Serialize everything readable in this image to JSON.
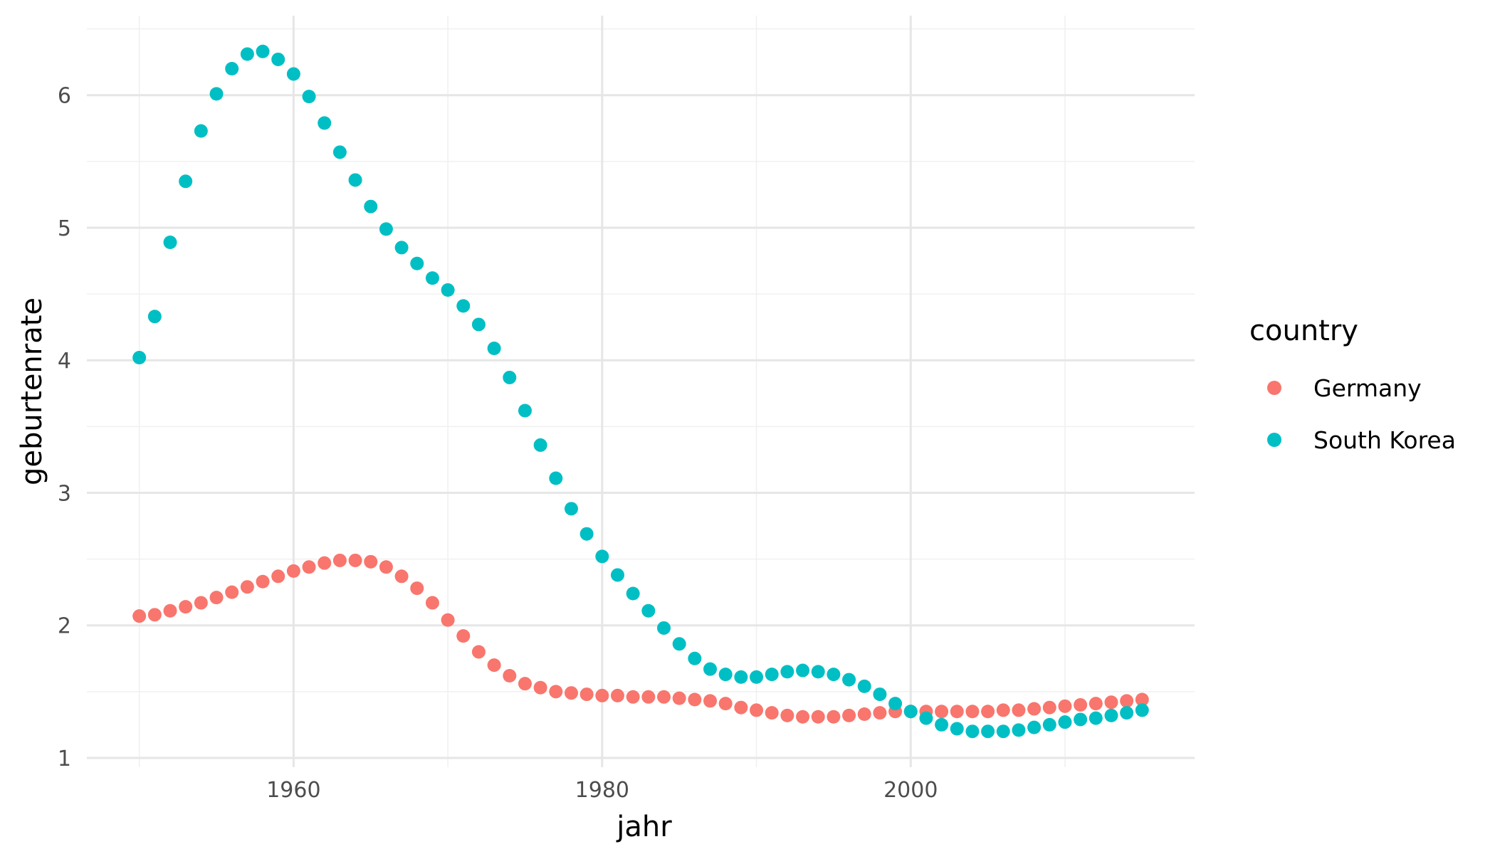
{
  "chart_data": {
    "type": "scatter",
    "xlabel": "jahr",
    "ylabel": "geburtenrate",
    "xlim": [
      1946.6,
      2018.4
    ],
    "ylim": [
      0.93,
      6.6
    ],
    "x_ticks": [
      1960,
      1980,
      2000
    ],
    "x_tick_labels": [
      "1960",
      "1980",
      "2000"
    ],
    "x_minor_ticks": [
      1950,
      1970,
      1990,
      2010
    ],
    "y_ticks": [
      1,
      2,
      3,
      4,
      5,
      6
    ],
    "y_tick_labels": [
      "1",
      "2",
      "3",
      "4",
      "5",
      "6"
    ],
    "y_minor_ticks": [
      1.5,
      2.5,
      3.5,
      4.5,
      5.5,
      6.5
    ],
    "grid": true,
    "legend": {
      "title": "country",
      "position": "right"
    },
    "series": [
      {
        "name": "Germany",
        "color": "#F8766D",
        "x": [
          1950,
          1951,
          1952,
          1953,
          1954,
          1955,
          1956,
          1957,
          1958,
          1959,
          1960,
          1961,
          1962,
          1963,
          1964,
          1965,
          1966,
          1967,
          1968,
          1969,
          1970,
          1971,
          1972,
          1973,
          1974,
          1975,
          1976,
          1977,
          1978,
          1979,
          1980,
          1981,
          1982,
          1983,
          1984,
          1985,
          1986,
          1987,
          1988,
          1989,
          1990,
          1991,
          1992,
          1993,
          1994,
          1995,
          1996,
          1997,
          1998,
          1999,
          2000,
          2001,
          2002,
          2003,
          2004,
          2005,
          2006,
          2007,
          2008,
          2009,
          2010,
          2011,
          2012,
          2013,
          2014,
          2015
        ],
        "y": [
          2.07,
          2.08,
          2.11,
          2.14,
          2.17,
          2.21,
          2.25,
          2.29,
          2.33,
          2.37,
          2.41,
          2.44,
          2.47,
          2.49,
          2.49,
          2.48,
          2.44,
          2.37,
          2.28,
          2.17,
          2.04,
          1.92,
          1.8,
          1.7,
          1.62,
          1.56,
          1.53,
          1.5,
          1.49,
          1.48,
          1.47,
          1.47,
          1.46,
          1.46,
          1.46,
          1.45,
          1.44,
          1.43,
          1.41,
          1.38,
          1.36,
          1.34,
          1.32,
          1.31,
          1.31,
          1.31,
          1.32,
          1.33,
          1.34,
          1.35,
          1.35,
          1.35,
          1.35,
          1.35,
          1.35,
          1.35,
          1.36,
          1.36,
          1.37,
          1.38,
          1.39,
          1.4,
          1.41,
          1.42,
          1.43,
          1.44
        ]
      },
      {
        "name": "South Korea",
        "color": "#00BFC4",
        "x": [
          1950,
          1951,
          1952,
          1953,
          1954,
          1955,
          1956,
          1957,
          1958,
          1959,
          1960,
          1961,
          1962,
          1963,
          1964,
          1965,
          1966,
          1967,
          1968,
          1969,
          1970,
          1971,
          1972,
          1973,
          1974,
          1975,
          1976,
          1977,
          1978,
          1979,
          1980,
          1981,
          1982,
          1983,
          1984,
          1985,
          1986,
          1987,
          1988,
          1989,
          1990,
          1991,
          1992,
          1993,
          1994,
          1995,
          1996,
          1997,
          1998,
          1999,
          2000,
          2001,
          2002,
          2003,
          2004,
          2005,
          2006,
          2007,
          2008,
          2009,
          2010,
          2011,
          2012,
          2013,
          2014,
          2015
        ],
        "y": [
          4.02,
          4.33,
          4.89,
          5.35,
          5.73,
          6.01,
          6.2,
          6.31,
          6.33,
          6.27,
          6.16,
          5.99,
          5.79,
          5.57,
          5.36,
          5.16,
          4.99,
          4.85,
          4.73,
          4.62,
          4.53,
          4.41,
          4.27,
          4.09,
          3.87,
          3.62,
          3.36,
          3.11,
          2.88,
          2.69,
          2.52,
          2.38,
          2.24,
          2.11,
          1.98,
          1.86,
          1.75,
          1.67,
          1.63,
          1.61,
          1.61,
          1.63,
          1.65,
          1.66,
          1.65,
          1.63,
          1.59,
          1.54,
          1.48,
          1.41,
          1.35,
          1.3,
          1.25,
          1.22,
          1.2,
          1.2,
          1.2,
          1.21,
          1.23,
          1.25,
          1.27,
          1.29,
          1.3,
          1.32,
          1.34,
          1.36
        ]
      }
    ]
  }
}
